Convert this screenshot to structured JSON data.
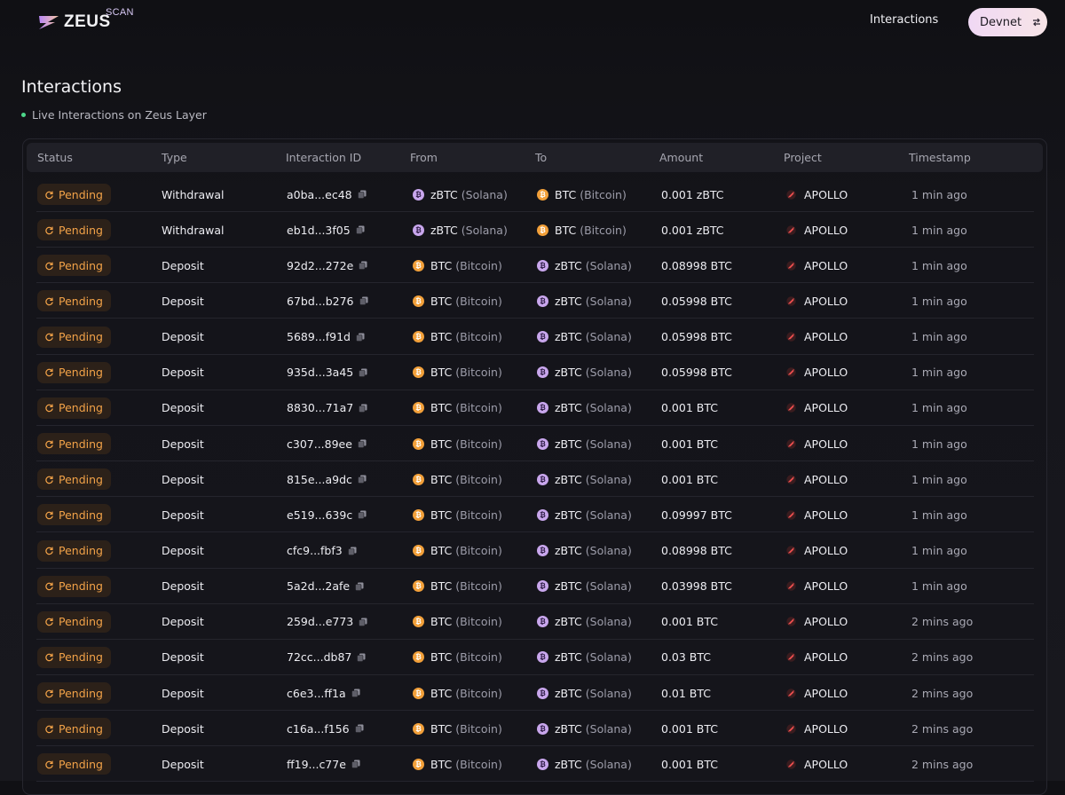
{
  "brand": {
    "name": "ZEUS",
    "sub": "SCAN"
  },
  "nav": {
    "interactions_link": "Interactions",
    "network_button": "Devnet"
  },
  "page": {
    "title": "Interactions",
    "subtitle": "Live Interactions on Zeus Layer"
  },
  "colors": {
    "pending": "#f2a248",
    "live_dot": "#4cd78a",
    "btc": "#f2a03a",
    "zbtc": "#c8a6ec",
    "accent_gradient": [
      "#f0d8f4",
      "#f7e4e7"
    ]
  },
  "icons": {
    "status": "refresh-icon",
    "copy": "copy-icon",
    "btc": "bitcoin-icon",
    "zbtc": "zbtc-solana-icon",
    "project": "apollo-icon",
    "network": "swap-icon"
  },
  "table": {
    "columns": [
      "Status",
      "Type",
      "Interaction ID",
      "From",
      "To",
      "Amount",
      "Project",
      "Timestamp"
    ],
    "rows": [
      {
        "status": "Pending",
        "type": "Withdrawal",
        "id": "a0ba...ec48",
        "from": {
          "token": "zBTC",
          "chain": "(Solana)"
        },
        "to": {
          "token": "BTC",
          "chain": "(Bitcoin)"
        },
        "amount": "0.001 zBTC",
        "project": "APOLLO",
        "timestamp": "1 min ago"
      },
      {
        "status": "Pending",
        "type": "Withdrawal",
        "id": "eb1d...3f05",
        "from": {
          "token": "zBTC",
          "chain": "(Solana)"
        },
        "to": {
          "token": "BTC",
          "chain": "(Bitcoin)"
        },
        "amount": "0.001 zBTC",
        "project": "APOLLO",
        "timestamp": "1 min ago"
      },
      {
        "status": "Pending",
        "type": "Deposit",
        "id": "92d2...272e",
        "from": {
          "token": "BTC",
          "chain": "(Bitcoin)"
        },
        "to": {
          "token": "zBTC",
          "chain": "(Solana)"
        },
        "amount": "0.08998 BTC",
        "project": "APOLLO",
        "timestamp": "1 min ago"
      },
      {
        "status": "Pending",
        "type": "Deposit",
        "id": "67bd...b276",
        "from": {
          "token": "BTC",
          "chain": "(Bitcoin)"
        },
        "to": {
          "token": "zBTC",
          "chain": "(Solana)"
        },
        "amount": "0.05998 BTC",
        "project": "APOLLO",
        "timestamp": "1 min ago"
      },
      {
        "status": "Pending",
        "type": "Deposit",
        "id": "5689...f91d",
        "from": {
          "token": "BTC",
          "chain": "(Bitcoin)"
        },
        "to": {
          "token": "zBTC",
          "chain": "(Solana)"
        },
        "amount": "0.05998 BTC",
        "project": "APOLLO",
        "timestamp": "1 min ago"
      },
      {
        "status": "Pending",
        "type": "Deposit",
        "id": "935d...3a45",
        "from": {
          "token": "BTC",
          "chain": "(Bitcoin)"
        },
        "to": {
          "token": "zBTC",
          "chain": "(Solana)"
        },
        "amount": "0.05998 BTC",
        "project": "APOLLO",
        "timestamp": "1 min ago"
      },
      {
        "status": "Pending",
        "type": "Deposit",
        "id": "8830...71a7",
        "from": {
          "token": "BTC",
          "chain": "(Bitcoin)"
        },
        "to": {
          "token": "zBTC",
          "chain": "(Solana)"
        },
        "amount": "0.001 BTC",
        "project": "APOLLO",
        "timestamp": "1 min ago"
      },
      {
        "status": "Pending",
        "type": "Deposit",
        "id": "c307...89ee",
        "from": {
          "token": "BTC",
          "chain": "(Bitcoin)"
        },
        "to": {
          "token": "zBTC",
          "chain": "(Solana)"
        },
        "amount": "0.001 BTC",
        "project": "APOLLO",
        "timestamp": "1 min ago"
      },
      {
        "status": "Pending",
        "type": "Deposit",
        "id": "815e...a9dc",
        "from": {
          "token": "BTC",
          "chain": "(Bitcoin)"
        },
        "to": {
          "token": "zBTC",
          "chain": "(Solana)"
        },
        "amount": "0.001 BTC",
        "project": "APOLLO",
        "timestamp": "1 min ago"
      },
      {
        "status": "Pending",
        "type": "Deposit",
        "id": "e519...639c",
        "from": {
          "token": "BTC",
          "chain": "(Bitcoin)"
        },
        "to": {
          "token": "zBTC",
          "chain": "(Solana)"
        },
        "amount": "0.09997 BTC",
        "project": "APOLLO",
        "timestamp": "1 min ago"
      },
      {
        "status": "Pending",
        "type": "Deposit",
        "id": "cfc9...fbf3",
        "from": {
          "token": "BTC",
          "chain": "(Bitcoin)"
        },
        "to": {
          "token": "zBTC",
          "chain": "(Solana)"
        },
        "amount": "0.08998 BTC",
        "project": "APOLLO",
        "timestamp": "1 min ago"
      },
      {
        "status": "Pending",
        "type": "Deposit",
        "id": "5a2d...2afe",
        "from": {
          "token": "BTC",
          "chain": "(Bitcoin)"
        },
        "to": {
          "token": "zBTC",
          "chain": "(Solana)"
        },
        "amount": "0.03998 BTC",
        "project": "APOLLO",
        "timestamp": "1 min ago"
      },
      {
        "status": "Pending",
        "type": "Deposit",
        "id": "259d...e773",
        "from": {
          "token": "BTC",
          "chain": "(Bitcoin)"
        },
        "to": {
          "token": "zBTC",
          "chain": "(Solana)"
        },
        "amount": "0.001 BTC",
        "project": "APOLLO",
        "timestamp": "2 mins ago"
      },
      {
        "status": "Pending",
        "type": "Deposit",
        "id": "72cc...db87",
        "from": {
          "token": "BTC",
          "chain": "(Bitcoin)"
        },
        "to": {
          "token": "zBTC",
          "chain": "(Solana)"
        },
        "amount": "0.03 BTC",
        "project": "APOLLO",
        "timestamp": "2 mins ago"
      },
      {
        "status": "Pending",
        "type": "Deposit",
        "id": "c6e3...ff1a",
        "from": {
          "token": "BTC",
          "chain": "(Bitcoin)"
        },
        "to": {
          "token": "zBTC",
          "chain": "(Solana)"
        },
        "amount": "0.01 BTC",
        "project": "APOLLO",
        "timestamp": "2 mins ago"
      },
      {
        "status": "Pending",
        "type": "Deposit",
        "id": "c16a...f156",
        "from": {
          "token": "BTC",
          "chain": "(Bitcoin)"
        },
        "to": {
          "token": "zBTC",
          "chain": "(Solana)"
        },
        "amount": "0.001 BTC",
        "project": "APOLLO",
        "timestamp": "2 mins ago"
      },
      {
        "status": "Pending",
        "type": "Deposit",
        "id": "ff19...c77e",
        "from": {
          "token": "BTC",
          "chain": "(Bitcoin)"
        },
        "to": {
          "token": "zBTC",
          "chain": "(Solana)"
        },
        "amount": "0.001 BTC",
        "project": "APOLLO",
        "timestamp": "2 mins ago"
      }
    ]
  }
}
